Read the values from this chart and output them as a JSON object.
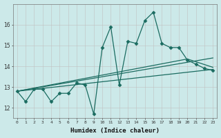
{
  "xlabel": "Humidex (Indice chaleur)",
  "bg_color": "#cce9e9",
  "line_color": "#1a6b60",
  "grid_color": "#b0d8d8",
  "xlim": [
    -0.5,
    23.5
  ],
  "ylim": [
    11.5,
    17.0
  ],
  "yticks": [
    12,
    13,
    14,
    15,
    16
  ],
  "xticks": [
    0,
    1,
    2,
    3,
    4,
    5,
    6,
    7,
    8,
    9,
    10,
    11,
    12,
    13,
    14,
    15,
    16,
    17,
    18,
    19,
    20,
    21,
    22,
    23
  ],
  "main_x": [
    0,
    1,
    2,
    3,
    4,
    5,
    6,
    7,
    8,
    9,
    10,
    11,
    12,
    13,
    14,
    15,
    16,
    17,
    18,
    19,
    20,
    21,
    22,
    23
  ],
  "main_y": [
    12.8,
    12.3,
    12.9,
    12.9,
    12.3,
    12.7,
    12.7,
    13.2,
    13.1,
    11.7,
    14.9,
    15.9,
    13.1,
    15.2,
    15.1,
    16.2,
    16.6,
    15.1,
    14.9,
    14.9,
    14.3,
    14.1,
    13.9,
    13.8
  ],
  "trend1_x": [
    0,
    23
  ],
  "trend1_y": [
    12.8,
    13.85
  ],
  "trend2_x": [
    0,
    23
  ],
  "trend2_y": [
    12.8,
    14.4
  ],
  "trend3_x": [
    0,
    20,
    23
  ],
  "trend3_y": [
    12.8,
    14.35,
    13.95
  ]
}
